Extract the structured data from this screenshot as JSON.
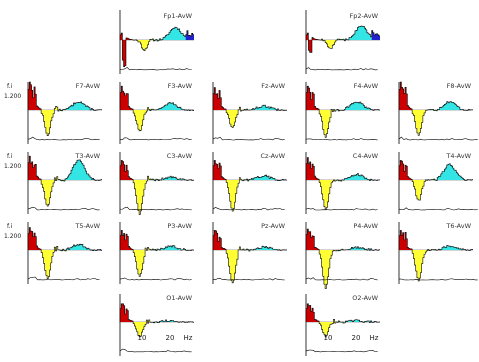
{
  "chart_data": {
    "type": "area",
    "y_label": "f.i",
    "y_tick_label": "1.200",
    "x_unit": "Hz",
    "x_tick_labels": [
      "10",
      "20"
    ],
    "band_colors": [
      "#cc0000",
      "#ffff33",
      "#44cc44",
      "#33e5e5",
      "#2222cc"
    ],
    "channels": [
      {
        "label": "Fp1-AvW",
        "spike": 0.25,
        "spike2": 0.0,
        "yellow": 0.35,
        "cyan": 0.45,
        "neg": 1.0,
        "drop": true
      },
      {
        "label": "Fp2-AvW",
        "spike": 0.25,
        "spike2": 0.0,
        "yellow": 0.3,
        "cyan": 0.5,
        "neg": 0.5,
        "drop": true
      },
      {
        "label": "F7-AvW",
        "spike": 1.0,
        "spike2": 0.5,
        "yellow": 0.9,
        "cyan": 0.3,
        "neg": 0.0,
        "drop": false
      },
      {
        "label": "F3-AvW",
        "spike": 0.85,
        "spike2": 0.45,
        "yellow": 0.75,
        "cyan": 0.25,
        "neg": 0.0,
        "drop": false
      },
      {
        "label": "Fz-AvW",
        "spike": 0.8,
        "spike2": 0.4,
        "yellow": 0.65,
        "cyan": 0.15,
        "neg": 0.0,
        "drop": false
      },
      {
        "label": "F4-AvW",
        "spike": 0.85,
        "spike2": 0.45,
        "yellow": 0.95,
        "cyan": 0.3,
        "neg": 0.0,
        "drop": false
      },
      {
        "label": "F8-AvW",
        "spike": 1.0,
        "spike2": 0.55,
        "yellow": 0.9,
        "cyan": 0.3,
        "neg": 0.0,
        "drop": false
      },
      {
        "label": "T3-AvW",
        "spike": 0.85,
        "spike2": 0.45,
        "yellow": 0.95,
        "cyan": 0.7,
        "neg": 0.0,
        "drop": false
      },
      {
        "label": "C3-AvW",
        "spike": 0.7,
        "spike2": 0.3,
        "yellow": 1.2,
        "cyan": 0.1,
        "neg": 0.0,
        "drop": false
      },
      {
        "label": "Cz-AvW",
        "spike": 0.7,
        "spike2": 0.35,
        "yellow": 1.1,
        "cyan": 0.15,
        "neg": 0.0,
        "drop": false
      },
      {
        "label": "C4-AvW",
        "spike": 0.8,
        "spike2": 0.4,
        "yellow": 1.05,
        "cyan": 0.2,
        "neg": 0.0,
        "drop": false
      },
      {
        "label": "T4-AvW",
        "spike": 0.7,
        "spike2": 0.35,
        "yellow": 0.75,
        "cyan": 0.55,
        "neg": 0.0,
        "drop": false
      },
      {
        "label": "T5-AvW",
        "spike": 0.8,
        "spike2": 0.4,
        "yellow": 1.0,
        "cyan": 0.2,
        "neg": 0.0,
        "drop": false
      },
      {
        "label": "P3-AvW",
        "spike": 0.7,
        "spike2": 0.35,
        "yellow": 0.95,
        "cyan": 0.15,
        "neg": 0.0,
        "drop": false
      },
      {
        "label": "Pz-AvW",
        "spike": 0.7,
        "spike2": 0.35,
        "yellow": 1.2,
        "cyan": 0.1,
        "neg": 0.0,
        "drop": false
      },
      {
        "label": "P4-AvW",
        "spike": 0.75,
        "spike2": 0.35,
        "yellow": 1.35,
        "cyan": 0.1,
        "neg": 0.0,
        "drop": false
      },
      {
        "label": "T6-AvW",
        "spike": 0.7,
        "spike2": 0.35,
        "yellow": 1.1,
        "cyan": 0.15,
        "neg": 0.0,
        "drop": false
      },
      {
        "label": "O1-AvW",
        "spike": 0.65,
        "spike2": 0.3,
        "yellow": 0.55,
        "cyan": 0.05,
        "neg": 0.0,
        "drop": false
      },
      {
        "label": "O2-AvW",
        "spike": 0.65,
        "spike2": 0.3,
        "yellow": 0.5,
        "cyan": 0.05,
        "neg": 0.0,
        "drop": false
      }
    ]
  }
}
